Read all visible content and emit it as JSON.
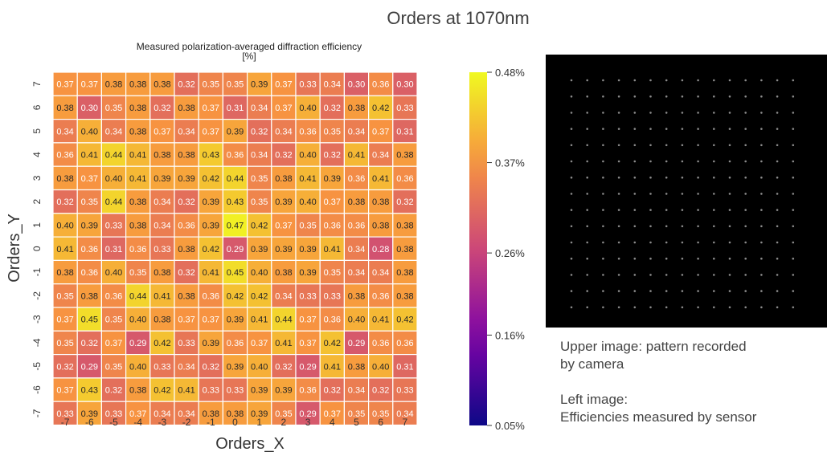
{
  "slide_title": "Orders at 1070nm",
  "notes": {
    "upper_line1": "Upper image: pattern recorded",
    "upper_line2": "by camera",
    "left_line1": "Left image:",
    "left_line2": "Efficiencies measured by sensor"
  },
  "colors": {
    "colormap": "plasma",
    "cell_border": "#ffffff",
    "camera_background": "#000000"
  },
  "camera_image": {
    "spot_rows": 15,
    "spot_cols": 15
  },
  "chart_data": {
    "type": "heatmap",
    "title_line1": "Measured polarization-averaged diffraction efficiency",
    "title_line2": "[%]",
    "xlabel": "Orders_X",
    "ylabel": "Orders_Y",
    "x": [
      "-7",
      "-6",
      "-5",
      "-4",
      "-3",
      "-2",
      "-1",
      "0",
      "1",
      "2",
      "3",
      "4",
      "5",
      "6",
      "7"
    ],
    "y": [
      "7",
      "6",
      "5",
      "4",
      "3",
      "2",
      "1",
      "0",
      "-1",
      "-2",
      "-3",
      "-4",
      "-5",
      "-6",
      "-7"
    ],
    "values": [
      [
        "0.37",
        "0.37",
        "0.38",
        "0.38",
        "0.38",
        "0.32",
        "0.35",
        "0.35",
        "0.39",
        "0.37",
        "0.33",
        "0.34",
        "0.30",
        "0.36",
        "0.30"
      ],
      [
        "0.38",
        "0.30",
        "0.35",
        "0.38",
        "0.32",
        "0.38",
        "0.37",
        "0.31",
        "0.34",
        "0.37",
        "0.40",
        "0.32",
        "0.38",
        "0.42",
        "0.33"
      ],
      [
        "0.34",
        "0.40",
        "0.34",
        "0.38",
        "0.37",
        "0.34",
        "0.37",
        "0.39",
        "0.32",
        "0.34",
        "0.36",
        "0.35",
        "0.34",
        "0.37",
        "0.31"
      ],
      [
        "0.36",
        "0.41",
        "0.44",
        "0.41",
        "0.38",
        "0.38",
        "0.43",
        "0.36",
        "0.34",
        "0.32",
        "0.40",
        "0.32",
        "0.41",
        "0.34",
        "0.38"
      ],
      [
        "0.38",
        "0.37",
        "0.40",
        "0.41",
        "0.39",
        "0.39",
        "0.42",
        "0.44",
        "0.35",
        "0.38",
        "0.41",
        "0.39",
        "0.36",
        "0.41",
        "0.36"
      ],
      [
        "0.32",
        "0.35",
        "0.44",
        "0.38",
        "0.34",
        "0.32",
        "0.39",
        "0.43",
        "0.35",
        "0.39",
        "0.40",
        "0.37",
        "0.38",
        "0.38",
        "0.32"
      ],
      [
        "0.40",
        "0.39",
        "0.33",
        "0.38",
        "0.34",
        "0.36",
        "0.39",
        "0.47",
        "0.42",
        "0.37",
        "0.35",
        "0.36",
        "0.36",
        "0.38",
        "0.38"
      ],
      [
        "0.41",
        "0.36",
        "0.31",
        "0.36",
        "0.33",
        "0.38",
        "0.42",
        "0.29",
        "0.39",
        "0.39",
        "0.39",
        "0.41",
        "0.34",
        "0.28",
        "0.38"
      ],
      [
        "0.38",
        "0.36",
        "0.40",
        "0.35",
        "0.38",
        "0.32",
        "0.41",
        "0.45",
        "0.40",
        "0.38",
        "0.39",
        "0.35",
        "0.34",
        "0.34",
        "0.38"
      ],
      [
        "0.35",
        "0.38",
        "0.36",
        "0.44",
        "0.41",
        "0.38",
        "0.36",
        "0.42",
        "0.42",
        "0.34",
        "0.33",
        "0.33",
        "0.38",
        "0.36",
        "0.38"
      ],
      [
        "0.37",
        "0.45",
        "0.35",
        "0.40",
        "0.38",
        "0.37",
        "0.37",
        "0.39",
        "0.41",
        "0.44",
        "0.37",
        "0.36",
        "0.40",
        "0.41",
        "0.42"
      ],
      [
        "0.35",
        "0.32",
        "0.37",
        "0.29",
        "0.42",
        "0.33",
        "0.39",
        "0.36",
        "0.37",
        "0.41",
        "0.37",
        "0.42",
        "0.29",
        "0.36",
        "0.36"
      ],
      [
        "0.32",
        "0.29",
        "0.35",
        "0.40",
        "0.33",
        "0.34",
        "0.32",
        "0.39",
        "0.40",
        "0.32",
        "0.29",
        "0.41",
        "0.38",
        "0.40",
        "0.31"
      ],
      [
        "0.37",
        "0.43",
        "0.32",
        "0.38",
        "0.42",
        "0.41",
        "0.33",
        "0.33",
        "0.39",
        "0.39",
        "0.36",
        "0.32",
        "0.34",
        "0.32",
        "0.33"
      ],
      [
        "0.33",
        "0.39",
        "0.33",
        "0.37",
        "0.34",
        "0.34",
        "0.38",
        "0.38",
        "0.39",
        "0.35",
        "0.29",
        "0.37",
        "0.35",
        "0.35",
        "0.34"
      ]
    ],
    "color_range": [
      0.05,
      0.48
    ],
    "colorbar_ticks": [
      {
        "value": 0.48,
        "label": "0.48%"
      },
      {
        "value": 0.37,
        "label": "0.37%"
      },
      {
        "value": 0.26,
        "label": "0.26%"
      },
      {
        "value": 0.16,
        "label": "0.16%"
      },
      {
        "value": 0.05,
        "label": "0.05%"
      }
    ]
  }
}
